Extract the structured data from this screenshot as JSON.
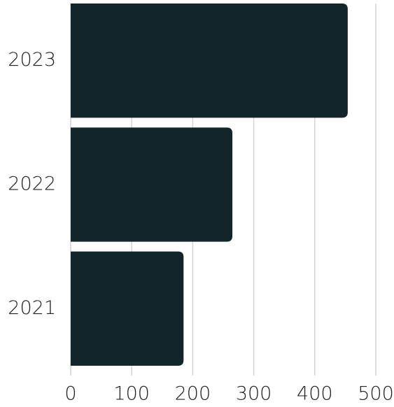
{
  "chart_data": {
    "type": "bar",
    "orientation": "horizontal",
    "categories": [
      "2023",
      "2022",
      "2021"
    ],
    "values": [
      454,
      265,
      185
    ],
    "color": "#13242a",
    "xlim": [
      0,
      500
    ],
    "xticks": [
      0,
      100,
      200,
      300,
      400,
      500
    ],
    "grid": true
  }
}
